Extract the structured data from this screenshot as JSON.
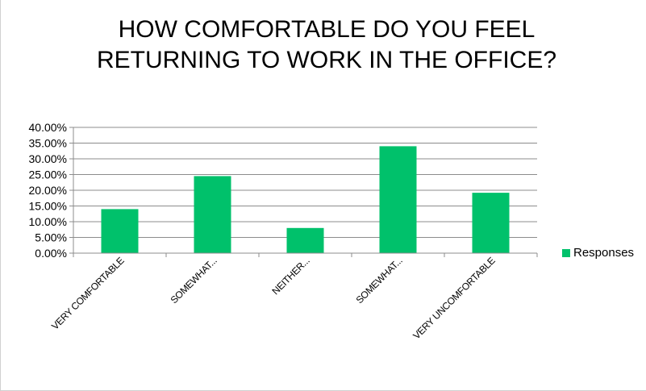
{
  "chart_data": {
    "type": "bar",
    "title": "HOW COMFORTABLE DO YOU FEEL RETURNING TO WORK IN THE OFFICE?",
    "categories": [
      "VERY COMFORTABLE",
      "SOMEWHAT...",
      "NEITHER...",
      "SOMEWHAT...",
      "VERY UNCOMFORTABLE"
    ],
    "series": [
      {
        "name": "Responses",
        "values": [
          14.0,
          24.5,
          8.0,
          34.0,
          19.2
        ]
      }
    ],
    "ylim": [
      0,
      40
    ],
    "yticks": [
      "0.00%",
      "5.00%",
      "10.00%",
      "15.00%",
      "20.00%",
      "25.00%",
      "30.00%",
      "35.00%",
      "40.00%"
    ],
    "grid": true,
    "legend_position": "right",
    "colors": {
      "bar": "#00c16b",
      "grid": "#8c8c8c"
    }
  }
}
